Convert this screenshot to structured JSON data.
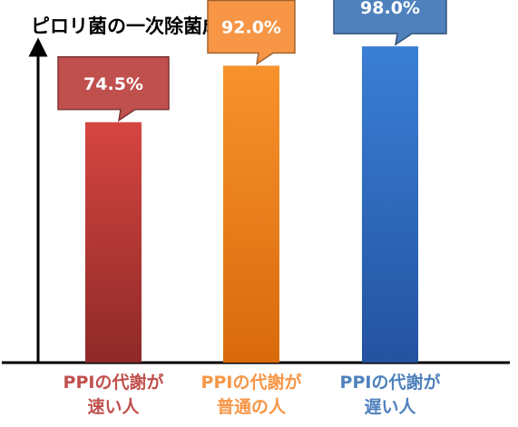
{
  "chart_data": {
    "type": "bar",
    "title": "ピロリ菌の一次除菌成功率",
    "categories": [
      [
        "PPIの代謝が",
        "速い人"
      ],
      [
        "PPIの代謝が",
        "普通の人"
      ],
      [
        "PPIの代謝が",
        "遅い人"
      ]
    ],
    "values": [
      74.5,
      92.0,
      98.0
    ],
    "data_labels": [
      "74.5%",
      "92.0%",
      "98.0%"
    ],
    "colors": [
      "#c0504d",
      "#f79646",
      "#4f81bd"
    ],
    "xlabel": "",
    "ylabel": "",
    "ylim": [
      0,
      100
    ],
    "grid": false,
    "legend": "none"
  }
}
